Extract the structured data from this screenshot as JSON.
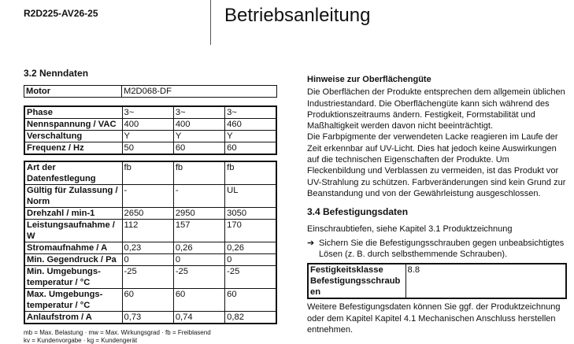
{
  "header": {
    "doc_id": "R2D225-AV26-25",
    "title": "Betriebsanleitung"
  },
  "left": {
    "heading": "3.2 Nenndaten",
    "motor": {
      "label": "Motor",
      "value": "M2D068-DF"
    },
    "electrical": [
      {
        "label": "Phase",
        "values": [
          "3~",
          "3~",
          "3~"
        ]
      },
      {
        "label": "Nennspannung / VAC",
        "values": [
          "400",
          "400",
          "460"
        ]
      },
      {
        "label": "Verschaltung",
        "values": [
          "Y",
          "Y",
          "Y"
        ]
      },
      {
        "label": "Frequenz / Hz",
        "values": [
          "50",
          "60",
          "60"
        ]
      }
    ],
    "data": [
      {
        "label": "Art der Datenfestlegung",
        "values": [
          "fb",
          "fb",
          "fb"
        ]
      },
      {
        "label": "Gültig für Zulassung / Norm",
        "values": [
          "-",
          "-",
          "UL"
        ]
      },
      {
        "label": "Drehzahl / min-1",
        "values": [
          "2650",
          "2950",
          "3050"
        ]
      },
      {
        "label": "Leistungsaufnahme / W",
        "values": [
          "112",
          "157",
          "170"
        ]
      },
      {
        "label": "Stromaufnahme / A",
        "values": [
          "0,23",
          "0,26",
          "0,26"
        ]
      },
      {
        "label": "Min. Gegendruck / Pa",
        "values": [
          "0",
          "0",
          "0"
        ]
      },
      {
        "label": "Min. Umgebungs-temperatur / °C",
        "values": [
          "-25",
          "-25",
          "-25"
        ]
      },
      {
        "label": "Max. Umgebungs-temperatur / °C",
        "values": [
          "60",
          "60",
          "60"
        ]
      },
      {
        "label": "Anlaufstrom / A",
        "values": [
          "0,73",
          "0,74",
          "0,82"
        ]
      }
    ],
    "footnote1": "mb = Max. Belastung · mw = Max. Wirkungsgrad · fb = Freiblasend",
    "footnote2": "kv = Kundenvorgabe · kg = Kundengerät"
  },
  "right": {
    "heading": "Hinweise zur Oberflächengüte",
    "para1": "Die Oberflächen der Produkte entsprechen dem allgemein üblichen Industriestandard. Die Oberflächengüte kann sich während des Produktionszeitraums ändern. Festigkeit, Formstabilität und Maßhaltigkeit werden davon nicht beeinträchtigt.",
    "para2": "Die Farbpigmente der verwendeten Lacke reagieren im Laufe der Zeit erkennbar auf UV-Licht. Dies hat jedoch keine Auswirkungen auf die technischen Eigenschaften der Produkte. Um Fleckenbildung und Verblassen zu vermeiden, ist das Produkt vor UV-Strahlung zu schützen. Farbveränderungen sind kein Grund zur Beanstandung und von der Gewährleistung ausgeschlossen.",
    "heading2": "3.4 Befestigungsdaten",
    "para3": "Einschraubtiefen, siehe Kapitel 3.1 Produktzeichnung",
    "bullet": "Sichern Sie die Befestigungsschrauben gegen unbeabsichtigtes Lösen (z. B. durch selbsthemmende Schrauben).",
    "fix_label": "Festigkeitsklasse Befestigungsschrauben",
    "fix_value": "8.8",
    "para4": "Weitere Befestigungsdaten können Sie ggf. der Produktzeichnung oder dem Kapitel Kapitel 4.1 Mechanischen Anschluss herstellen entnehmen."
  }
}
